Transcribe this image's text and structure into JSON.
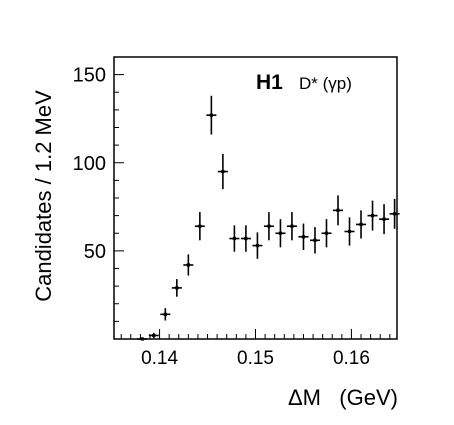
{
  "chart_data": {
    "type": "scatter",
    "experiment": "H1",
    "channel": "D* (γp)",
    "xlabel": "ΔM   (GeV)",
    "ylabel": "Candidates / 1.2 MeV",
    "xlim": [
      0.135,
      0.1645
    ],
    "ylim": [
      0,
      160
    ],
    "x_ticks": [
      "0.14",
      "0.15",
      "0.16"
    ],
    "x_tick_values": [
      0.14,
      0.15,
      0.16
    ],
    "y_ticks": [
      "50",
      "100",
      "150"
    ],
    "y_tick_values": [
      50,
      100,
      150
    ],
    "grid": false,
    "legend": "none",
    "points": [
      {
        "x": 0.1382,
        "y": 0,
        "err": 1
      },
      {
        "x": 0.1394,
        "y": 2,
        "err": 1.5
      },
      {
        "x": 0.1406,
        "y": 14,
        "err": 3.5
      },
      {
        "x": 0.1418,
        "y": 29,
        "err": 5
      },
      {
        "x": 0.143,
        "y": 42,
        "err": 6
      },
      {
        "x": 0.1442,
        "y": 64,
        "err": 8
      },
      {
        "x": 0.1454,
        "y": 127,
        "err": 11
      },
      {
        "x": 0.1466,
        "y": 95,
        "err": 10
      },
      {
        "x": 0.1478,
        "y": 57,
        "err": 7.5
      },
      {
        "x": 0.149,
        "y": 57,
        "err": 7.5
      },
      {
        "x": 0.1502,
        "y": 53,
        "err": 7.5
      },
      {
        "x": 0.1514,
        "y": 64,
        "err": 8
      },
      {
        "x": 0.1526,
        "y": 60,
        "err": 8
      },
      {
        "x": 0.1538,
        "y": 64,
        "err": 8
      },
      {
        "x": 0.155,
        "y": 58,
        "err": 7.5
      },
      {
        "x": 0.1562,
        "y": 56,
        "err": 7.5
      },
      {
        "x": 0.1574,
        "y": 60,
        "err": 8
      },
      {
        "x": 0.1586,
        "y": 73,
        "err": 8.5
      },
      {
        "x": 0.1598,
        "y": 61,
        "err": 8
      },
      {
        "x": 0.161,
        "y": 65,
        "err": 8
      },
      {
        "x": 0.1622,
        "y": 70,
        "err": 8.5
      },
      {
        "x": 0.1634,
        "y": 68,
        "err": 8.5
      },
      {
        "x": 0.1645,
        "y": 71,
        "err": 8.5
      }
    ]
  }
}
